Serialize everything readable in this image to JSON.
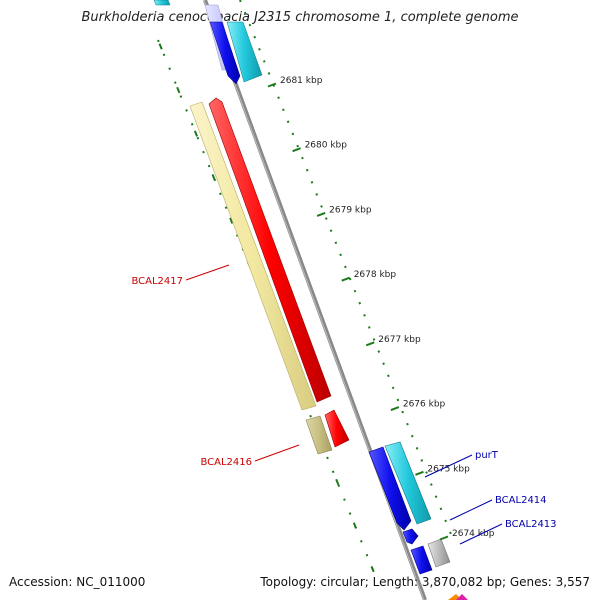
{
  "title": "Burkholderia cenocepacia J2315 chromosome 1, complete genome",
  "footer": {
    "accession": "Accession: NC_011000",
    "summary": "Topology: circular; Length: 3,870,082 bp; Genes: 3,557"
  },
  "colors": {
    "ruler": "#1a7a1a",
    "backbone": "#888888",
    "left_label": "#cc0000",
    "right_label": "#0000aa"
  },
  "ticks": [
    {
      "label": "2681 kbp",
      "pos": 2681
    },
    {
      "label": "2680 kbp",
      "pos": 2680
    },
    {
      "label": "2679 kbp",
      "pos": 2679
    },
    {
      "label": "2678 kbp",
      "pos": 2678
    },
    {
      "label": "2677 kbp",
      "pos": 2677
    },
    {
      "label": "2676 kbp",
      "pos": 2676
    },
    {
      "label": "2675 kbp",
      "pos": 2675
    },
    {
      "label": "2674 kbp",
      "pos": 2674
    }
  ],
  "gene_labels": [
    {
      "name": "BCAL2417",
      "side": "left"
    },
    {
      "name": "BCAL2416",
      "side": "left"
    },
    {
      "name": "purT",
      "side": "right"
    },
    {
      "name": "BCAL2414",
      "side": "right"
    },
    {
      "name": "BCAL2413",
      "side": "right"
    }
  ],
  "features": [
    {
      "id": "top-blue",
      "color": "#1010ee"
    },
    {
      "id": "top-cyan",
      "color": "#22c8dd"
    },
    {
      "id": "top-lavender",
      "color": "#ccccff"
    },
    {
      "id": "BCAL2417-red",
      "color": "#ee1111"
    },
    {
      "id": "BCAL2417-yellow",
      "color": "#f2e8a0"
    },
    {
      "id": "BCAL2416-red",
      "color": "#ee1111"
    },
    {
      "id": "BCAL2416-olive",
      "color": "#c8bf82"
    },
    {
      "id": "purT-blue",
      "color": "#1010ee"
    },
    {
      "id": "purT-cyan",
      "color": "#22c8dd"
    },
    {
      "id": "BCAL2414-blue",
      "color": "#1010ee"
    },
    {
      "id": "BCAL2413-blue",
      "color": "#1010ee"
    },
    {
      "id": "BCAL2413-grey",
      "color": "#bbbbbb"
    },
    {
      "id": "bottom-orange",
      "color": "#ff8800"
    },
    {
      "id": "bottom-magenta",
      "color": "#dd22aa"
    }
  ]
}
